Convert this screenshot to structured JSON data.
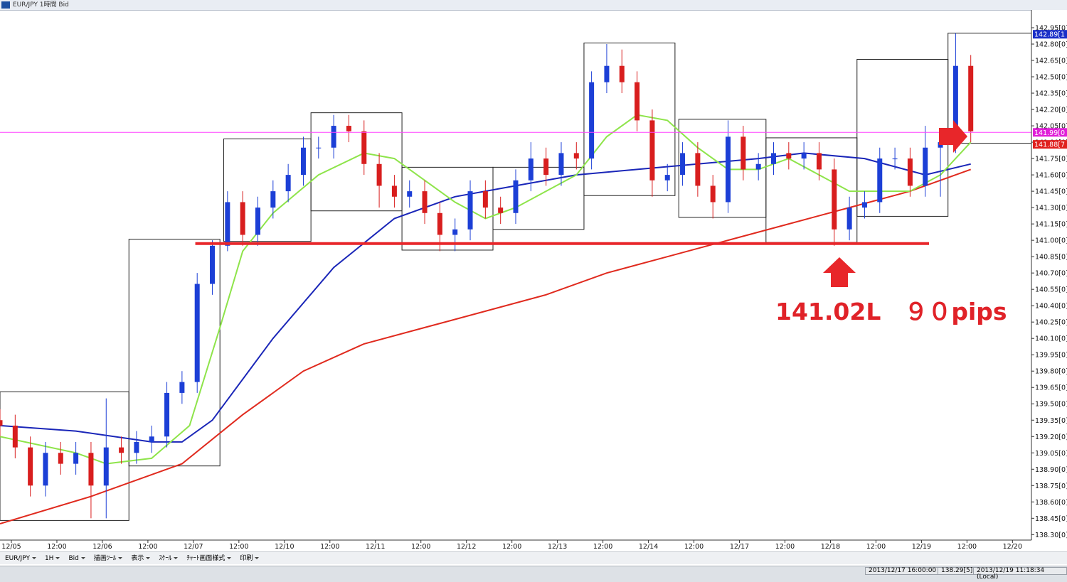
{
  "window": {
    "title": "EUR/JPY 1時間 Bid"
  },
  "chart_data": {
    "type": "candlestick",
    "x": [
      0,
      4,
      8,
      12,
      16,
      20,
      24,
      28,
      32,
      36,
      40,
      44,
      48,
      52,
      56,
      60,
      64,
      68,
      72,
      76,
      80,
      84,
      88,
      92,
      96,
      100,
      104,
      108,
      112,
      116,
      120,
      124,
      128,
      132,
      136,
      140,
      144,
      148,
      152,
      156,
      160,
      164,
      168,
      172,
      176,
      180,
      184,
      188,
      192,
      196,
      200,
      204,
      208,
      212,
      216,
      220,
      224,
      228,
      232,
      236,
      240,
      244,
      248,
      252,
      256
    ],
    "open": [
      139.35,
      139.3,
      139.1,
      138.75,
      139.05,
      138.95,
      139.05,
      138.75,
      139.1,
      139.05,
      139.15,
      139.2,
      139.6,
      139.7,
      140.6,
      140.95,
      141.35,
      141.05,
      141.3,
      141.45,
      141.6,
      141.85,
      141.85,
      142.05,
      142.0,
      141.7,
      141.5,
      141.4,
      141.45,
      141.25,
      141.05,
      141.1,
      141.45,
      141.3,
      141.25,
      141.55,
      141.75,
      141.6,
      141.8,
      141.75,
      142.45,
      142.6,
      142.45,
      142.1,
      141.55,
      141.6,
      141.8,
      141.5,
      141.35,
      141.95,
      141.65,
      141.7,
      141.8,
      141.75,
      141.8,
      141.65,
      141.1,
      141.3,
      141.35,
      141.75,
      141.75,
      141.5,
      141.85,
      141.9,
      142.6
    ],
    "high": [
      139.45,
      139.4,
      139.2,
      139.15,
      139.15,
      139.15,
      139.15,
      139.55,
      139.2,
      139.25,
      139.3,
      139.7,
      139.8,
      140.7,
      141.0,
      141.45,
      141.45,
      141.4,
      141.55,
      141.7,
      141.95,
      141.95,
      142.15,
      142.15,
      142.1,
      141.8,
      141.6,
      141.55,
      141.55,
      141.35,
      141.2,
      141.55,
      141.55,
      141.4,
      141.65,
      141.9,
      141.85,
      141.9,
      141.9,
      142.55,
      142.8,
      142.75,
      142.55,
      142.2,
      141.7,
      141.9,
      141.9,
      141.6,
      142.1,
      142.05,
      141.8,
      141.9,
      141.9,
      141.9,
      141.9,
      141.75,
      141.4,
      141.45,
      141.85,
      141.85,
      141.85,
      142.05,
      142.0,
      142.9,
      142.7
    ],
    "low": [
      139.2,
      139.0,
      138.65,
      138.65,
      138.85,
      138.85,
      138.45,
      138.45,
      138.95,
      138.95,
      139.05,
      139.1,
      139.5,
      139.6,
      140.5,
      140.9,
      140.95,
      140.95,
      141.2,
      141.35,
      141.5,
      141.75,
      141.75,
      141.9,
      141.6,
      141.3,
      141.3,
      141.3,
      141.15,
      140.9,
      140.9,
      141.0,
      141.2,
      141.15,
      141.15,
      141.45,
      141.5,
      141.5,
      141.65,
      141.65,
      142.35,
      142.35,
      142.0,
      141.4,
      141.45,
      141.5,
      141.4,
      141.2,
      141.25,
      141.55,
      141.55,
      141.6,
      141.65,
      141.65,
      141.55,
      140.95,
      141.0,
      141.2,
      141.25,
      141.65,
      141.4,
      141.4,
      141.4,
      141.8,
      141.9
    ],
    "close": [
      139.3,
      139.1,
      138.75,
      139.05,
      138.95,
      139.05,
      138.75,
      139.1,
      139.05,
      139.15,
      139.2,
      139.6,
      139.7,
      140.6,
      140.95,
      141.35,
      141.05,
      141.3,
      141.45,
      141.6,
      141.85,
      141.85,
      142.05,
      142.0,
      141.7,
      141.5,
      141.4,
      141.45,
      141.25,
      141.05,
      141.1,
      141.45,
      141.3,
      141.25,
      141.55,
      141.75,
      141.6,
      141.8,
      141.75,
      142.45,
      142.6,
      142.45,
      142.1,
      141.55,
      141.6,
      141.8,
      141.5,
      141.35,
      141.95,
      141.65,
      141.7,
      141.8,
      141.75,
      141.8,
      141.65,
      141.1,
      141.3,
      141.35,
      141.75,
      141.75,
      141.5,
      141.85,
      141.9,
      142.6,
      142.0
    ],
    "up_color": "#1c3fd6",
    "down_color": "#d81e1e",
    "moving_averages": [
      {
        "color": "#e02a1e",
        "x": [
          0,
          24,
          48,
          64,
          80,
          96,
          112,
          128,
          144,
          160,
          176,
          192,
          208,
          224,
          240,
          256
        ],
        "values": [
          138.4,
          138.65,
          138.95,
          139.4,
          139.8,
          140.05,
          140.2,
          140.35,
          140.5,
          140.7,
          140.85,
          141.0,
          141.15,
          141.3,
          141.45,
          141.65
        ]
      },
      {
        "color": "#1a26b8",
        "x": [
          0,
          20,
          40,
          48,
          56,
          72,
          88,
          104,
          120,
          136,
          152,
          168,
          184,
          200,
          212,
          228,
          244,
          256
        ],
        "values": [
          139.3,
          139.25,
          139.15,
          139.15,
          139.35,
          140.1,
          140.75,
          141.2,
          141.4,
          141.5,
          141.6,
          141.65,
          141.7,
          141.75,
          141.8,
          141.75,
          141.6,
          141.7
        ]
      },
      {
        "color": "#8ee44a",
        "x": [
          0,
          20,
          28,
          40,
          50,
          58,
          64,
          72,
          84,
          96,
          104,
          112,
          120,
          128,
          136,
          144,
          152,
          160,
          168,
          176,
          184,
          192,
          200,
          208,
          216,
          224,
          232,
          240,
          248,
          256
        ],
        "values": [
          139.2,
          139.05,
          138.95,
          139.0,
          139.3,
          140.2,
          140.9,
          141.25,
          141.6,
          141.8,
          141.75,
          141.55,
          141.35,
          141.2,
          141.3,
          141.45,
          141.6,
          141.95,
          142.15,
          142.1,
          141.85,
          141.65,
          141.65,
          141.75,
          141.6,
          141.45,
          141.45,
          141.45,
          141.6,
          141.9
        ]
      }
    ],
    "range_boxes": [
      {
        "x": [
          0,
          34
        ],
        "y": [
          138.43,
          139.61
        ]
      },
      {
        "x": [
          34,
          58
        ],
        "y": [
          138.93,
          141.01
        ]
      },
      {
        "x": [
          59,
          82
        ],
        "y": [
          140.99,
          141.93
        ]
      },
      {
        "x": [
          82,
          106
        ],
        "y": [
          141.27,
          142.17
        ]
      },
      {
        "x": [
          106,
          130
        ],
        "y": [
          140.91,
          141.67
        ]
      },
      {
        "x": [
          130,
          154
        ],
        "y": [
          141.1,
          141.67
        ]
      },
      {
        "x": [
          154,
          178
        ],
        "y": [
          141.41,
          142.81
        ]
      },
      {
        "x": [
          179,
          202
        ],
        "y": [
          141.21,
          142.11
        ]
      },
      {
        "x": [
          202,
          226
        ],
        "y": [
          140.98,
          141.94
        ]
      },
      {
        "x": [
          226,
          250
        ],
        "y": [
          141.22,
          142.66
        ]
      },
      {
        "x": [
          250,
          272
        ],
        "y": [
          141.89,
          142.9
        ]
      }
    ],
    "current_line": {
      "value": 141.99,
      "color": "#ff44ff"
    },
    "support_line": {
      "value": 140.97,
      "x": [
        51.5,
        245
      ],
      "color": "#e8262a"
    },
    "annotation": {
      "text": "141.02L　９０pips",
      "color": "#e02228"
    },
    "price_flags": [
      {
        "value": 142.89,
        "label": "142.89[1",
        "color": "#1a2fc8"
      },
      {
        "value": 141.99,
        "label": "141.99[0",
        "color": "#e020d8"
      },
      {
        "value": 141.88,
        "label": "141.88[7",
        "color": "#e0201e"
      }
    ],
    "xlim": [
      0,
      272
    ],
    "ylim": [
      138.25,
      143.1
    ],
    "xticks": [
      {
        "value": 3,
        "label": "12/05"
      },
      {
        "value": 15,
        "label": "12:00"
      },
      {
        "value": 27,
        "label": "12/06"
      },
      {
        "value": 39,
        "label": "12:00"
      },
      {
        "value": 51,
        "label": "12/07"
      },
      {
        "value": 63,
        "label": "12:00"
      },
      {
        "value": 75,
        "label": "12/10"
      },
      {
        "value": 87,
        "label": "12:00"
      },
      {
        "value": 99,
        "label": "12/11"
      },
      {
        "value": 111,
        "label": "12:00"
      },
      {
        "value": 123,
        "label": "12/12"
      },
      {
        "value": 135,
        "label": "12:00"
      },
      {
        "value": 147,
        "label": "12/13"
      },
      {
        "value": 159,
        "label": "12:00"
      },
      {
        "value": 171,
        "label": "12/14"
      },
      {
        "value": 183,
        "label": "12:00"
      },
      {
        "value": 195,
        "label": "12/17"
      },
      {
        "value": 207,
        "label": "12:00"
      },
      {
        "value": 219,
        "label": "12/18"
      },
      {
        "value": 231,
        "label": "12:00"
      },
      {
        "value": 243,
        "label": "12/19"
      },
      {
        "value": 255,
        "label": "12:00"
      },
      {
        "value": 267,
        "label": "12/20"
      }
    ],
    "yticks": [
      {
        "value": 142.95,
        "label": "142.95[0]"
      },
      {
        "value": 142.8,
        "label": "142.80[0]"
      },
      {
        "value": 142.65,
        "label": "142.65[0]"
      },
      {
        "value": 142.5,
        "label": "142.50[0]"
      },
      {
        "value": 142.35,
        "label": "142.35[0]"
      },
      {
        "value": 142.2,
        "label": "142.20[0]"
      },
      {
        "value": 142.05,
        "label": "142.05[0]"
      },
      {
        "value": 141.9,
        "label": "141.90[0]"
      },
      {
        "value": 141.75,
        "label": "141.75[0]"
      },
      {
        "value": 141.6,
        "label": "141.60[0]"
      },
      {
        "value": 141.45,
        "label": "141.45[0]"
      },
      {
        "value": 141.3,
        "label": "141.30[0]"
      },
      {
        "value": 141.15,
        "label": "141.15[0]"
      },
      {
        "value": 141,
        "label": "141.00[0]"
      },
      {
        "value": 140.85,
        "label": "140.85[0]"
      },
      {
        "value": 140.7,
        "label": "140.70[0]"
      },
      {
        "value": 140.55,
        "label": "140.55[0]"
      },
      {
        "value": 140.4,
        "label": "140.40[0]"
      },
      {
        "value": 140.25,
        "label": "140.25[0]"
      },
      {
        "value": 140.1,
        "label": "140.10[0]"
      },
      {
        "value": 139.95,
        "label": "139.95[0]"
      },
      {
        "value": 139.8,
        "label": "139.80[0]"
      },
      {
        "value": 139.65,
        "label": "139.65[0]"
      },
      {
        "value": 139.5,
        "label": "139.50[0]"
      },
      {
        "value": 139.35,
        "label": "139.35[0]"
      },
      {
        "value": 139.2,
        "label": "139.20[0]"
      },
      {
        "value": 139.05,
        "label": "139.05[0]"
      },
      {
        "value": 138.9,
        "label": "138.90[0]"
      },
      {
        "value": 138.75,
        "label": "138.75[0]"
      },
      {
        "value": 138.6,
        "label": "138.60[0]"
      },
      {
        "value": 138.45,
        "label": "138.45[0]"
      },
      {
        "value": 138.3,
        "label": "138.30[0]"
      }
    ]
  },
  "toolbar": {
    "items": [
      "EUR/JPY",
      "1H",
      "Bid",
      "描画ﾂｰﾙ",
      "表示",
      "ｽｹｰﾙ",
      "ﾁｬｰﾄ画面様式",
      "印刷"
    ]
  },
  "status_bar": {
    "items": [
      "2013/12/17 16:00:00",
      "138.29[5]",
      "2013/12/19 11:18:34 (Local)"
    ]
  }
}
